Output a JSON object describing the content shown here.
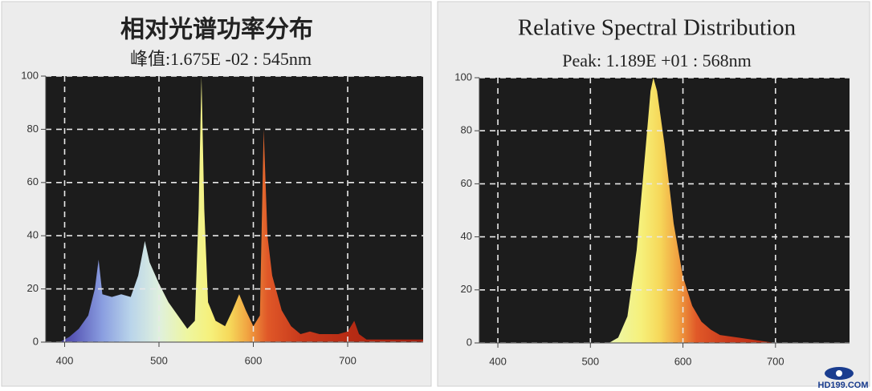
{
  "chart_data": [
    {
      "type": "area",
      "title": "相对光谱功率分布",
      "subtitle": "峰值:1.675E -02 : 545nm",
      "x": [
        380,
        395,
        405,
        415,
        425,
        432,
        436,
        440,
        450,
        460,
        470,
        478,
        485,
        490,
        500,
        510,
        520,
        530,
        538,
        542,
        545,
        548,
        552,
        560,
        570,
        578,
        585,
        592,
        600,
        607,
        611,
        615,
        620,
        630,
        640,
        650,
        660,
        670,
        680,
        690,
        700,
        707,
        712,
        720,
        740,
        760,
        780
      ],
      "values": [
        0,
        0,
        2,
        5,
        10,
        20,
        31,
        18,
        17,
        18,
        17,
        25,
        38,
        30,
        22,
        15,
        10,
        5,
        8,
        50,
        100,
        50,
        15,
        8,
        6,
        12,
        18,
        12,
        6,
        10,
        80,
        40,
        25,
        12,
        6,
        3,
        4,
        3,
        3,
        3,
        4,
        8,
        3,
        1,
        1,
        1,
        1
      ],
      "xlim": [
        380,
        780
      ],
      "xticks": [
        400,
        500,
        600,
        700
      ],
      "ylim": [
        0,
        100
      ],
      "yticks": [
        0,
        20,
        40,
        60,
        80,
        100
      ],
      "grid": true
    },
    {
      "type": "area",
      "title": "Relative Spectral Distribution",
      "subtitle": "Peak: 1.189E +01 : 568nm",
      "x": [
        380,
        520,
        530,
        540,
        550,
        560,
        565,
        568,
        572,
        580,
        590,
        600,
        610,
        620,
        630,
        640,
        660,
        680,
        700,
        780
      ],
      "values": [
        0,
        0,
        2,
        10,
        35,
        75,
        95,
        100,
        95,
        75,
        45,
        25,
        14,
        8,
        5,
        3,
        2,
        1,
        0,
        0
      ],
      "xlim": [
        380,
        780
      ],
      "xticks": [
        400,
        500,
        600,
        700
      ],
      "ylim": [
        0,
        100
      ],
      "yticks": [
        0,
        20,
        40,
        60,
        80,
        100
      ],
      "grid": true
    }
  ],
  "watermark": "HD199.COM"
}
